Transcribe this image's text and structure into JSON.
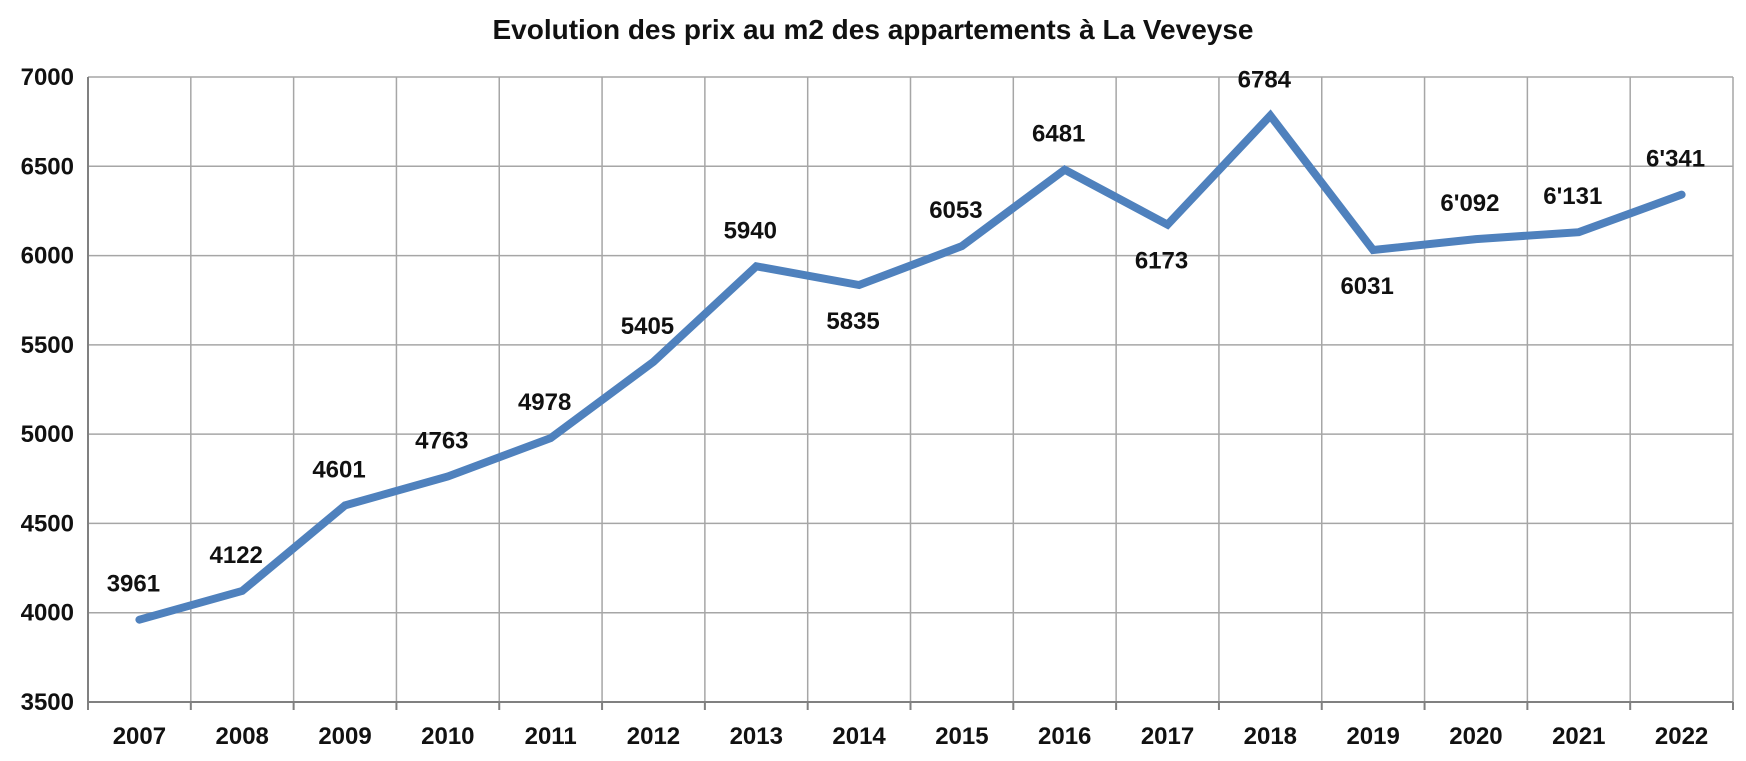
{
  "chart_data": {
    "type": "line",
    "title": "Evolution des prix au m2 des appartements à La Veveyse",
    "xlabel": "",
    "ylabel": "",
    "categories": [
      "2007",
      "2008",
      "2009",
      "2010",
      "2011",
      "2012",
      "2013",
      "2014",
      "2015",
      "2016",
      "2017",
      "2018",
      "2019",
      "2020",
      "2021",
      "2022"
    ],
    "series": [
      {
        "values": [
          3961,
          4122,
          4601,
          4763,
          4978,
          5405,
          5940,
          5835,
          6053,
          6481,
          6173,
          6784,
          6031,
          6092,
          6131,
          6341
        ],
        "labels": [
          "3961",
          "4122",
          "4601",
          "4763",
          "4978",
          "5405",
          "5940",
          "5835",
          "6053",
          "6481",
          "6173",
          "6784",
          "6031",
          "6'092",
          "6'131",
          "6'341"
        ],
        "label_positions": [
          "above",
          "above",
          "above",
          "above",
          "above",
          "above",
          "above",
          "below",
          "above",
          "above",
          "below",
          "above",
          "below",
          "above",
          "above",
          "above"
        ]
      }
    ],
    "ylim": [
      3500,
      7000
    ],
    "yticks": [
      "3500",
      "4000",
      "4500",
      "5000",
      "5500",
      "6000",
      "6500",
      "7000"
    ],
    "grid": true,
    "legend": "none",
    "colors": {
      "line": "#4F81BD",
      "grid": "#A6A6A6",
      "axis": "#808080",
      "text": "#111111"
    }
  }
}
